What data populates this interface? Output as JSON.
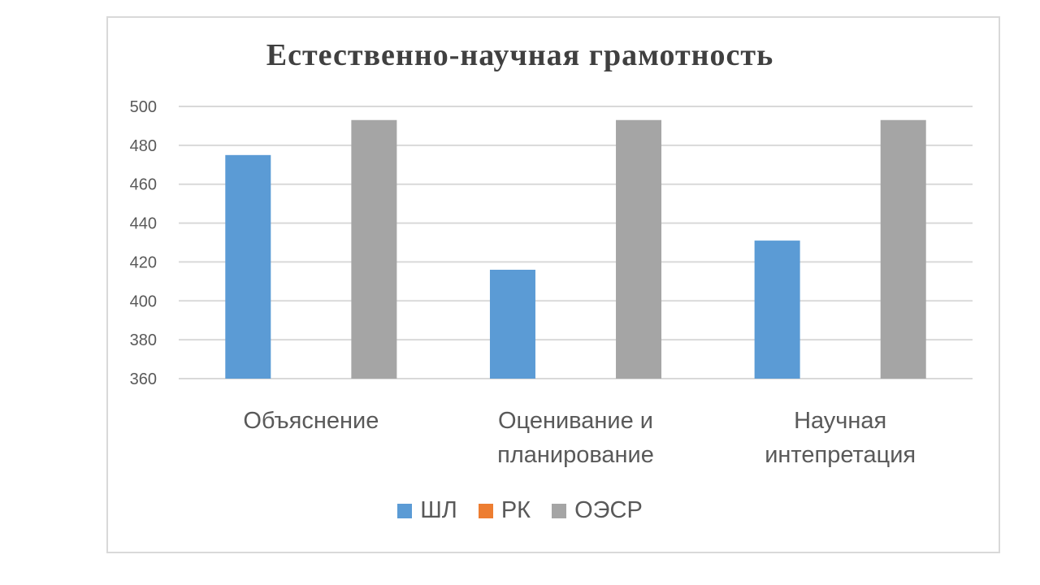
{
  "chart_data": {
    "type": "bar",
    "title": "Естественно-научная грамотность",
    "categories": [
      [
        "Объяснение"
      ],
      [
        "Оценивание и",
        "планирование"
      ],
      [
        "Научная",
        "интепретация"
      ]
    ],
    "series": [
      {
        "name": "ШЛ",
        "color": "#5b9bd5",
        "values": [
          475,
          416,
          431
        ]
      },
      {
        "name": "РК",
        "color": "#ed7d31",
        "values": [
          null,
          null,
          null
        ]
      },
      {
        "name": "ОЭСР",
        "color": "#a5a5a5",
        "values": [
          493,
          493,
          493
        ]
      }
    ],
    "ylim": [
      360,
      500
    ],
    "yticks": [
      "360",
      "380",
      "400",
      "420",
      "440",
      "460",
      "480",
      "500"
    ],
    "ytick_values": [
      360,
      380,
      400,
      420,
      440,
      460,
      480,
      500
    ],
    "grid": true,
    "legend_position": "bottom"
  }
}
